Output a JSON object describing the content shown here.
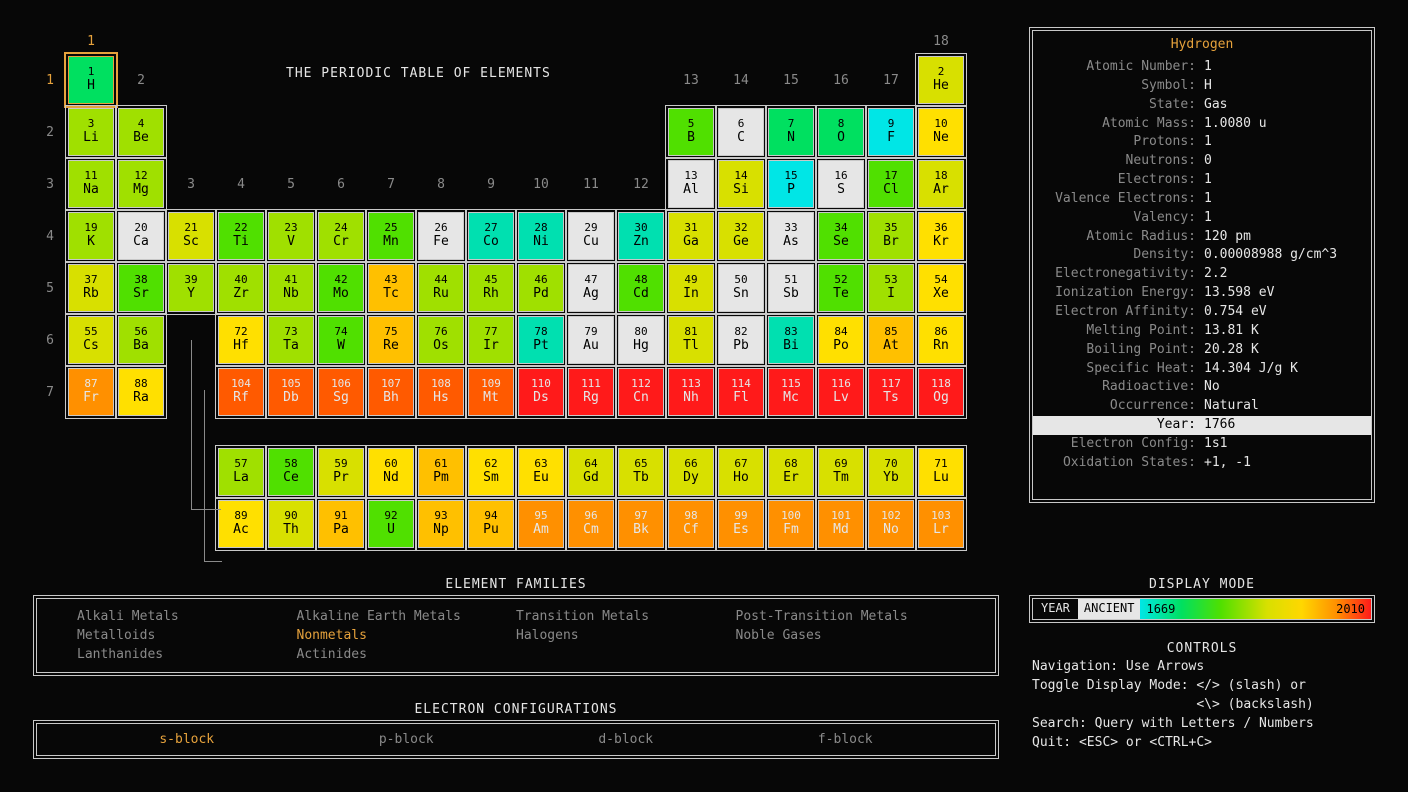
{
  "title": "THE PERIODIC TABLE OF ELEMENTS",
  "selected": {
    "symbol": "H",
    "group": 1,
    "period": 1
  },
  "colors": {
    "ancient": "#e6e6e6",
    "scale": [
      "#00e6e6",
      "#00e0b0",
      "#00e060",
      "#50e000",
      "#a0e000",
      "#d8e000",
      "#ffe000",
      "#ffc000",
      "#ff9000",
      "#ff5a00",
      "#ff1a1a"
    ],
    "textDarkOn": [
      "#00e6e6",
      "#00e0b0",
      "#00e060",
      "#50e000",
      "#a0e000",
      "#d8e000",
      "#ffe000",
      "#ffc000",
      "#e6e6e6"
    ]
  },
  "groups": [
    1,
    2,
    3,
    4,
    5,
    6,
    7,
    8,
    9,
    10,
    11,
    12,
    13,
    14,
    15,
    16,
    17,
    18
  ],
  "periods": [
    1,
    2,
    3,
    4,
    5,
    6,
    7
  ],
  "elements": [
    {
      "n": 1,
      "s": "H",
      "g": 1,
      "p": 1,
      "c": "#00e060"
    },
    {
      "n": 2,
      "s": "He",
      "g": 18,
      "p": 1,
      "c": "#d8e000"
    },
    {
      "n": 3,
      "s": "Li",
      "g": 1,
      "p": 2,
      "c": "#a0e000"
    },
    {
      "n": 4,
      "s": "Be",
      "g": 2,
      "p": 2,
      "c": "#a0e000"
    },
    {
      "n": 5,
      "s": "B",
      "g": 13,
      "p": 2,
      "c": "#50e000"
    },
    {
      "n": 6,
      "s": "C",
      "g": 14,
      "p": 2,
      "c": "#e6e6e6"
    },
    {
      "n": 7,
      "s": "N",
      "g": 15,
      "p": 2,
      "c": "#00e060"
    },
    {
      "n": 8,
      "s": "O",
      "g": 16,
      "p": 2,
      "c": "#00e060"
    },
    {
      "n": 9,
      "s": "F",
      "g": 17,
      "p": 2,
      "c": "#00e6e6"
    },
    {
      "n": 10,
      "s": "Ne",
      "g": 18,
      "p": 2,
      "c": "#ffe000"
    },
    {
      "n": 11,
      "s": "Na",
      "g": 1,
      "p": 3,
      "c": "#a0e000"
    },
    {
      "n": 12,
      "s": "Mg",
      "g": 2,
      "p": 3,
      "c": "#a0e000"
    },
    {
      "n": 13,
      "s": "Al",
      "g": 13,
      "p": 3,
      "c": "#e6e6e6"
    },
    {
      "n": 14,
      "s": "Si",
      "g": 14,
      "p": 3,
      "c": "#d8e000"
    },
    {
      "n": 15,
      "s": "P",
      "g": 15,
      "p": 3,
      "c": "#00e6e6"
    },
    {
      "n": 16,
      "s": "S",
      "g": 16,
      "p": 3,
      "c": "#e6e6e6"
    },
    {
      "n": 17,
      "s": "Cl",
      "g": 17,
      "p": 3,
      "c": "#50e000"
    },
    {
      "n": 18,
      "s": "Ar",
      "g": 18,
      "p": 3,
      "c": "#d8e000"
    },
    {
      "n": 19,
      "s": "K",
      "g": 1,
      "p": 4,
      "c": "#a0e000"
    },
    {
      "n": 20,
      "s": "Ca",
      "g": 2,
      "p": 4,
      "c": "#e6e6e6"
    },
    {
      "n": 21,
      "s": "Sc",
      "g": 3,
      "p": 4,
      "c": "#d8e000"
    },
    {
      "n": 22,
      "s": "Ti",
      "g": 4,
      "p": 4,
      "c": "#50e000"
    },
    {
      "n": 23,
      "s": "V",
      "g": 5,
      "p": 4,
      "c": "#a0e000"
    },
    {
      "n": 24,
      "s": "Cr",
      "g": 6,
      "p": 4,
      "c": "#a0e000"
    },
    {
      "n": 25,
      "s": "Mn",
      "g": 7,
      "p": 4,
      "c": "#50e000"
    },
    {
      "n": 26,
      "s": "Fe",
      "g": 8,
      "p": 4,
      "c": "#e6e6e6"
    },
    {
      "n": 27,
      "s": "Co",
      "g": 9,
      "p": 4,
      "c": "#00e0b0"
    },
    {
      "n": 28,
      "s": "Ni",
      "g": 10,
      "p": 4,
      "c": "#00e0b0"
    },
    {
      "n": 29,
      "s": "Cu",
      "g": 11,
      "p": 4,
      "c": "#e6e6e6"
    },
    {
      "n": 30,
      "s": "Zn",
      "g": 12,
      "p": 4,
      "c": "#00e0b0"
    },
    {
      "n": 31,
      "s": "Ga",
      "g": 13,
      "p": 4,
      "c": "#d8e000"
    },
    {
      "n": 32,
      "s": "Ge",
      "g": 14,
      "p": 4,
      "c": "#d8e000"
    },
    {
      "n": 33,
      "s": "As",
      "g": 15,
      "p": 4,
      "c": "#e6e6e6"
    },
    {
      "n": 34,
      "s": "Se",
      "g": 16,
      "p": 4,
      "c": "#50e000"
    },
    {
      "n": 35,
      "s": "Br",
      "g": 17,
      "p": 4,
      "c": "#a0e000"
    },
    {
      "n": 36,
      "s": "Kr",
      "g": 18,
      "p": 4,
      "c": "#ffe000"
    },
    {
      "n": 37,
      "s": "Rb",
      "g": 1,
      "p": 5,
      "c": "#d8e000"
    },
    {
      "n": 38,
      "s": "Sr",
      "g": 2,
      "p": 5,
      "c": "#50e000"
    },
    {
      "n": 39,
      "s": "Y",
      "g": 3,
      "p": 5,
      "c": "#a0e000"
    },
    {
      "n": 40,
      "s": "Zr",
      "g": 4,
      "p": 5,
      "c": "#a0e000"
    },
    {
      "n": 41,
      "s": "Nb",
      "g": 5,
      "p": 5,
      "c": "#a0e000"
    },
    {
      "n": 42,
      "s": "Mo",
      "g": 6,
      "p": 5,
      "c": "#50e000"
    },
    {
      "n": 43,
      "s": "Tc",
      "g": 7,
      "p": 5,
      "c": "#ffc000"
    },
    {
      "n": 44,
      "s": "Ru",
      "g": 8,
      "p": 5,
      "c": "#a0e000"
    },
    {
      "n": 45,
      "s": "Rh",
      "g": 9,
      "p": 5,
      "c": "#a0e000"
    },
    {
      "n": 46,
      "s": "Pd",
      "g": 10,
      "p": 5,
      "c": "#a0e000"
    },
    {
      "n": 47,
      "s": "Ag",
      "g": 11,
      "p": 5,
      "c": "#e6e6e6"
    },
    {
      "n": 48,
      "s": "Cd",
      "g": 12,
      "p": 5,
      "c": "#50e000"
    },
    {
      "n": 49,
      "s": "In",
      "g": 13,
      "p": 5,
      "c": "#d8e000"
    },
    {
      "n": 50,
      "s": "Sn",
      "g": 14,
      "p": 5,
      "c": "#e6e6e6"
    },
    {
      "n": 51,
      "s": "Sb",
      "g": 15,
      "p": 5,
      "c": "#e6e6e6"
    },
    {
      "n": 52,
      "s": "Te",
      "g": 16,
      "p": 5,
      "c": "#50e000"
    },
    {
      "n": 53,
      "s": "I",
      "g": 17,
      "p": 5,
      "c": "#a0e000"
    },
    {
      "n": 54,
      "s": "Xe",
      "g": 18,
      "p": 5,
      "c": "#ffe000"
    },
    {
      "n": 55,
      "s": "Cs",
      "g": 1,
      "p": 6,
      "c": "#d8e000"
    },
    {
      "n": 56,
      "s": "Ba",
      "g": 2,
      "p": 6,
      "c": "#a0e000"
    },
    {
      "n": 72,
      "s": "Hf",
      "g": 4,
      "p": 6,
      "c": "#ffe000"
    },
    {
      "n": 73,
      "s": "Ta",
      "g": 5,
      "p": 6,
      "c": "#a0e000"
    },
    {
      "n": 74,
      "s": "W",
      "g": 6,
      "p": 6,
      "c": "#50e000"
    },
    {
      "n": 75,
      "s": "Re",
      "g": 7,
      "p": 6,
      "c": "#ffc000"
    },
    {
      "n": 76,
      "s": "Os",
      "g": 8,
      "p": 6,
      "c": "#a0e000"
    },
    {
      "n": 77,
      "s": "Ir",
      "g": 9,
      "p": 6,
      "c": "#a0e000"
    },
    {
      "n": 78,
      "s": "Pt",
      "g": 10,
      "p": 6,
      "c": "#00e0b0"
    },
    {
      "n": 79,
      "s": "Au",
      "g": 11,
      "p": 6,
      "c": "#e6e6e6"
    },
    {
      "n": 80,
      "s": "Hg",
      "g": 12,
      "p": 6,
      "c": "#e6e6e6"
    },
    {
      "n": 81,
      "s": "Tl",
      "g": 13,
      "p": 6,
      "c": "#d8e000"
    },
    {
      "n": 82,
      "s": "Pb",
      "g": 14,
      "p": 6,
      "c": "#e6e6e6"
    },
    {
      "n": 83,
      "s": "Bi",
      "g": 15,
      "p": 6,
      "c": "#00e0b0"
    },
    {
      "n": 84,
      "s": "Po",
      "g": 16,
      "p": 6,
      "c": "#ffe000"
    },
    {
      "n": 85,
      "s": "At",
      "g": 17,
      "p": 6,
      "c": "#ffc000"
    },
    {
      "n": 86,
      "s": "Rn",
      "g": 18,
      "p": 6,
      "c": "#ffe000"
    },
    {
      "n": 87,
      "s": "Fr",
      "g": 1,
      "p": 7,
      "c": "#ff9000"
    },
    {
      "n": 88,
      "s": "Ra",
      "g": 2,
      "p": 7,
      "c": "#ffe000"
    },
    {
      "n": 104,
      "s": "Rf",
      "g": 4,
      "p": 7,
      "c": "#ff5a00"
    },
    {
      "n": 105,
      "s": "Db",
      "g": 5,
      "p": 7,
      "c": "#ff5a00"
    },
    {
      "n": 106,
      "s": "Sg",
      "g": 6,
      "p": 7,
      "c": "#ff5a00"
    },
    {
      "n": 107,
      "s": "Bh",
      "g": 7,
      "p": 7,
      "c": "#ff5a00"
    },
    {
      "n": 108,
      "s": "Hs",
      "g": 8,
      "p": 7,
      "c": "#ff5a00"
    },
    {
      "n": 109,
      "s": "Mt",
      "g": 9,
      "p": 7,
      "c": "#ff5a00"
    },
    {
      "n": 110,
      "s": "Ds",
      "g": 10,
      "p": 7,
      "c": "#ff1a1a"
    },
    {
      "n": 111,
      "s": "Rg",
      "g": 11,
      "p": 7,
      "c": "#ff1a1a"
    },
    {
      "n": 112,
      "s": "Cn",
      "g": 12,
      "p": 7,
      "c": "#ff1a1a"
    },
    {
      "n": 113,
      "s": "Nh",
      "g": 13,
      "p": 7,
      "c": "#ff1a1a"
    },
    {
      "n": 114,
      "s": "Fl",
      "g": 14,
      "p": 7,
      "c": "#ff1a1a"
    },
    {
      "n": 115,
      "s": "Mc",
      "g": 15,
      "p": 7,
      "c": "#ff1a1a"
    },
    {
      "n": 116,
      "s": "Lv",
      "g": 16,
      "p": 7,
      "c": "#ff1a1a"
    },
    {
      "n": 117,
      "s": "Ts",
      "g": 17,
      "p": 7,
      "c": "#ff1a1a"
    },
    {
      "n": 118,
      "s": "Og",
      "g": 18,
      "p": 7,
      "c": "#ff1a1a"
    }
  ],
  "lanthanides": [
    {
      "n": 57,
      "s": "La",
      "c": "#a0e000"
    },
    {
      "n": 58,
      "s": "Ce",
      "c": "#50e000"
    },
    {
      "n": 59,
      "s": "Pr",
      "c": "#d8e000"
    },
    {
      "n": 60,
      "s": "Nd",
      "c": "#ffe000"
    },
    {
      "n": 61,
      "s": "Pm",
      "c": "#ffc000"
    },
    {
      "n": 62,
      "s": "Sm",
      "c": "#ffe000"
    },
    {
      "n": 63,
      "s": "Eu",
      "c": "#ffe000"
    },
    {
      "n": 64,
      "s": "Gd",
      "c": "#d8e000"
    },
    {
      "n": 65,
      "s": "Tb",
      "c": "#d8e000"
    },
    {
      "n": 66,
      "s": "Dy",
      "c": "#d8e000"
    },
    {
      "n": 67,
      "s": "Ho",
      "c": "#d8e000"
    },
    {
      "n": 68,
      "s": "Er",
      "c": "#d8e000"
    },
    {
      "n": 69,
      "s": "Tm",
      "c": "#d8e000"
    },
    {
      "n": 70,
      "s": "Yb",
      "c": "#d8e000"
    },
    {
      "n": 71,
      "s": "Lu",
      "c": "#ffe000"
    }
  ],
  "actinides": [
    {
      "n": 89,
      "s": "Ac",
      "c": "#ffe000"
    },
    {
      "n": 90,
      "s": "Th",
      "c": "#d8e000"
    },
    {
      "n": 91,
      "s": "Pa",
      "c": "#ffc000"
    },
    {
      "n": 92,
      "s": "U",
      "c": "#50e000"
    },
    {
      "n": 93,
      "s": "Np",
      "c": "#ffc000"
    },
    {
      "n": 94,
      "s": "Pu",
      "c": "#ffc000"
    },
    {
      "n": 95,
      "s": "Am",
      "c": "#ff9000"
    },
    {
      "n": 96,
      "s": "Cm",
      "c": "#ff9000"
    },
    {
      "n": 97,
      "s": "Bk",
      "c": "#ff9000"
    },
    {
      "n": 98,
      "s": "Cf",
      "c": "#ff9000"
    },
    {
      "n": 99,
      "s": "Es",
      "c": "#ff9000"
    },
    {
      "n": 100,
      "s": "Fm",
      "c": "#ff9000"
    },
    {
      "n": 101,
      "s": "Md",
      "c": "#ff9000"
    },
    {
      "n": 102,
      "s": "No",
      "c": "#ff9000"
    },
    {
      "n": 103,
      "s": "Lr",
      "c": "#ff9000"
    }
  ],
  "detail": {
    "name": "Hydrogen",
    "rows": [
      {
        "k": "Atomic Number",
        "v": "1"
      },
      {
        "k": "Symbol",
        "v": "H"
      },
      {
        "k": "State",
        "v": "Gas"
      },
      {
        "k": "Atomic Mass",
        "v": "1.0080 u"
      },
      {
        "k": "Protons",
        "v": "1"
      },
      {
        "k": "Neutrons",
        "v": "0"
      },
      {
        "k": "Electrons",
        "v": "1"
      },
      {
        "k": "Valence Electrons",
        "v": "1"
      },
      {
        "k": "Valency",
        "v": "1"
      },
      {
        "k": "Atomic Radius",
        "v": "120 pm"
      },
      {
        "k": "Density",
        "v": "0.00008988 g/cm^3"
      },
      {
        "k": "Electronegativity",
        "v": "2.2"
      },
      {
        "k": "Ionization Energy",
        "v": "13.598 eV"
      },
      {
        "k": "Electron Affinity",
        "v": "0.754 eV"
      },
      {
        "k": "Melting Point",
        "v": "13.81 K"
      },
      {
        "k": "Boiling Point",
        "v": "20.28 K"
      },
      {
        "k": "Specific Heat",
        "v": "14.304 J/g K"
      },
      {
        "k": "Radioactive",
        "v": "No"
      },
      {
        "k": "Occurrence",
        "v": "Natural"
      },
      {
        "k": "Year",
        "v": "1766",
        "hi": true
      },
      {
        "k": "Electron Config",
        "v": "1s1"
      },
      {
        "k": "Oxidation States",
        "v": "+1, -1"
      }
    ]
  },
  "families": {
    "title": "ELEMENT FAMILIES",
    "items": [
      "Alkali Metals",
      "Alkaline Earth Metals",
      "Transition Metals",
      "Post-Transition Metals",
      "Metalloids",
      "Nonmetals",
      "Halogens",
      "Noble Gases",
      "Lanthanides",
      "Actinides"
    ],
    "active": "Nonmetals"
  },
  "econf": {
    "title": "ELECTRON CONFIGURATIONS",
    "items": [
      "s-block",
      "p-block",
      "d-block",
      "f-block"
    ],
    "active": "s-block"
  },
  "mode": {
    "title": "DISPLAY MODE",
    "label": "YEAR",
    "ancient": "ANCIENT",
    "min": "1669",
    "max": "2010"
  },
  "controls": {
    "title": "CONTROLS",
    "lines": [
      "Navigation: Use Arrows",
      "Toggle Display Mode: </> (slash) or",
      "                     <\\> (backslash)",
      "Search: Query with Letters / Numbers",
      "Quit: <ESC> or <CTRL+C>"
    ]
  }
}
